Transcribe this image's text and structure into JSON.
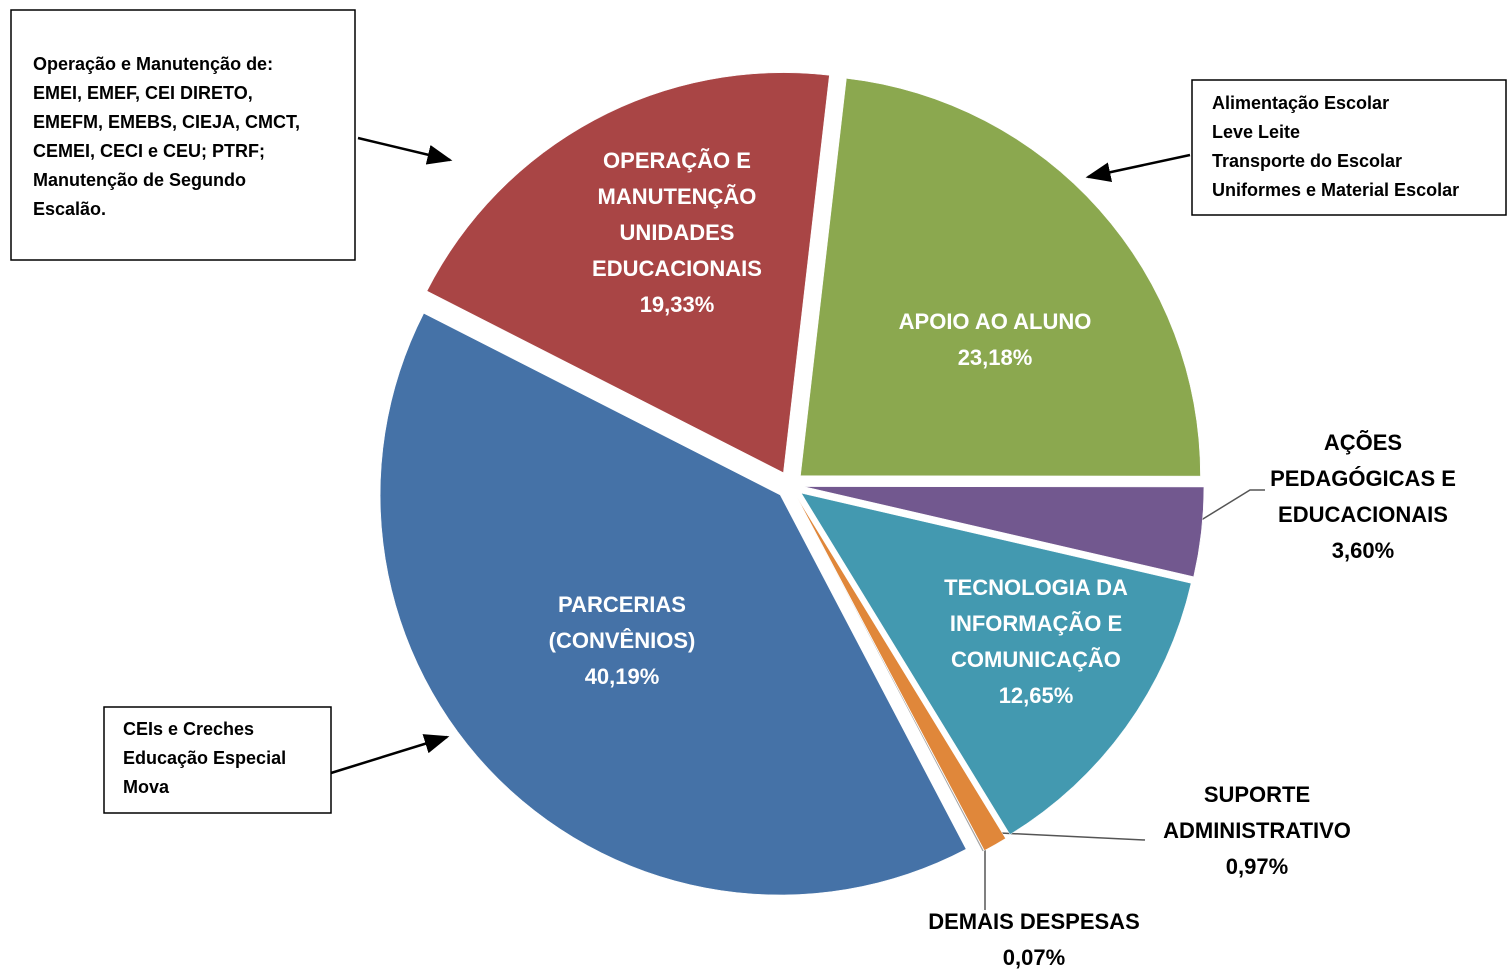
{
  "chart_data": {
    "type": "pie",
    "categories": [
      "APOIO AO ALUNO",
      "AÇÕES PEDAGÓGICAS E EDUCACIONAIS",
      "TECNOLOGIA DA INFORMAÇÃO E COMUNICAÇÃO",
      "SUPORTE ADMINISTRATIVO",
      "DEMAIS DESPESAS",
      "PARCERIAS (CONVÊNIOS)",
      "OPERAÇÃO E MANUTENÇÃO UNIDADES EDUCACIONAIS"
    ],
    "values": [
      23.18,
      3.6,
      12.65,
      0.97,
      0.07,
      40.19,
      19.33
    ],
    "value_labels": [
      "23,18%",
      "3,60%",
      "12,65%",
      "0,97%",
      "0,07%",
      "40,19%",
      "19,33%"
    ],
    "colors": [
      "#8ba84f",
      "#72588f",
      "#4399b0",
      "#e0873a",
      "#a6a6a6",
      "#4572a7",
      "#a94545"
    ],
    "annotations": [
      {
        "lines": [
          "Operação e Manutenção de:",
          "EMEI, EMEF, CEI DIRETO,",
          "EMEFM, EMEBS, CIEJA, CMCT,",
          "CEMEI, CECI e CEU; PTRF;",
          "Manutenção de Segundo",
          "Escalão."
        ]
      },
      {
        "lines": [
          "Alimentação Escolar",
          "Leve Leite",
          "Transporte do Escolar",
          "Uniformes e Material Escolar"
        ]
      },
      {
        "lines": [
          "CEIs e Creches",
          "Educação Especial",
          "Mova"
        ]
      }
    ]
  }
}
